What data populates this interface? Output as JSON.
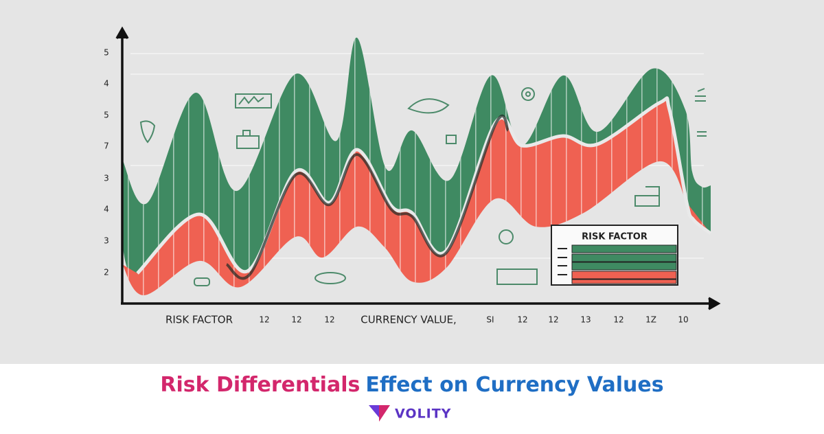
{
  "illustration": {
    "y_labels": [
      "5",
      "4",
      "5",
      "7",
      "3",
      "4",
      "3",
      "2"
    ],
    "x_labels": [
      "RISK FACTOR",
      "12",
      "12",
      "12",
      "CURRENCY VALUE,",
      "SI",
      "12",
      "12",
      "13",
      "12",
      "1Z",
      "10"
    ],
    "legend_title": "RISK FACTOR"
  },
  "banner": {
    "title_part1": "Risk Differentials",
    "title_part2": "Effect on Currency Values",
    "brand": "VOLITY"
  }
}
